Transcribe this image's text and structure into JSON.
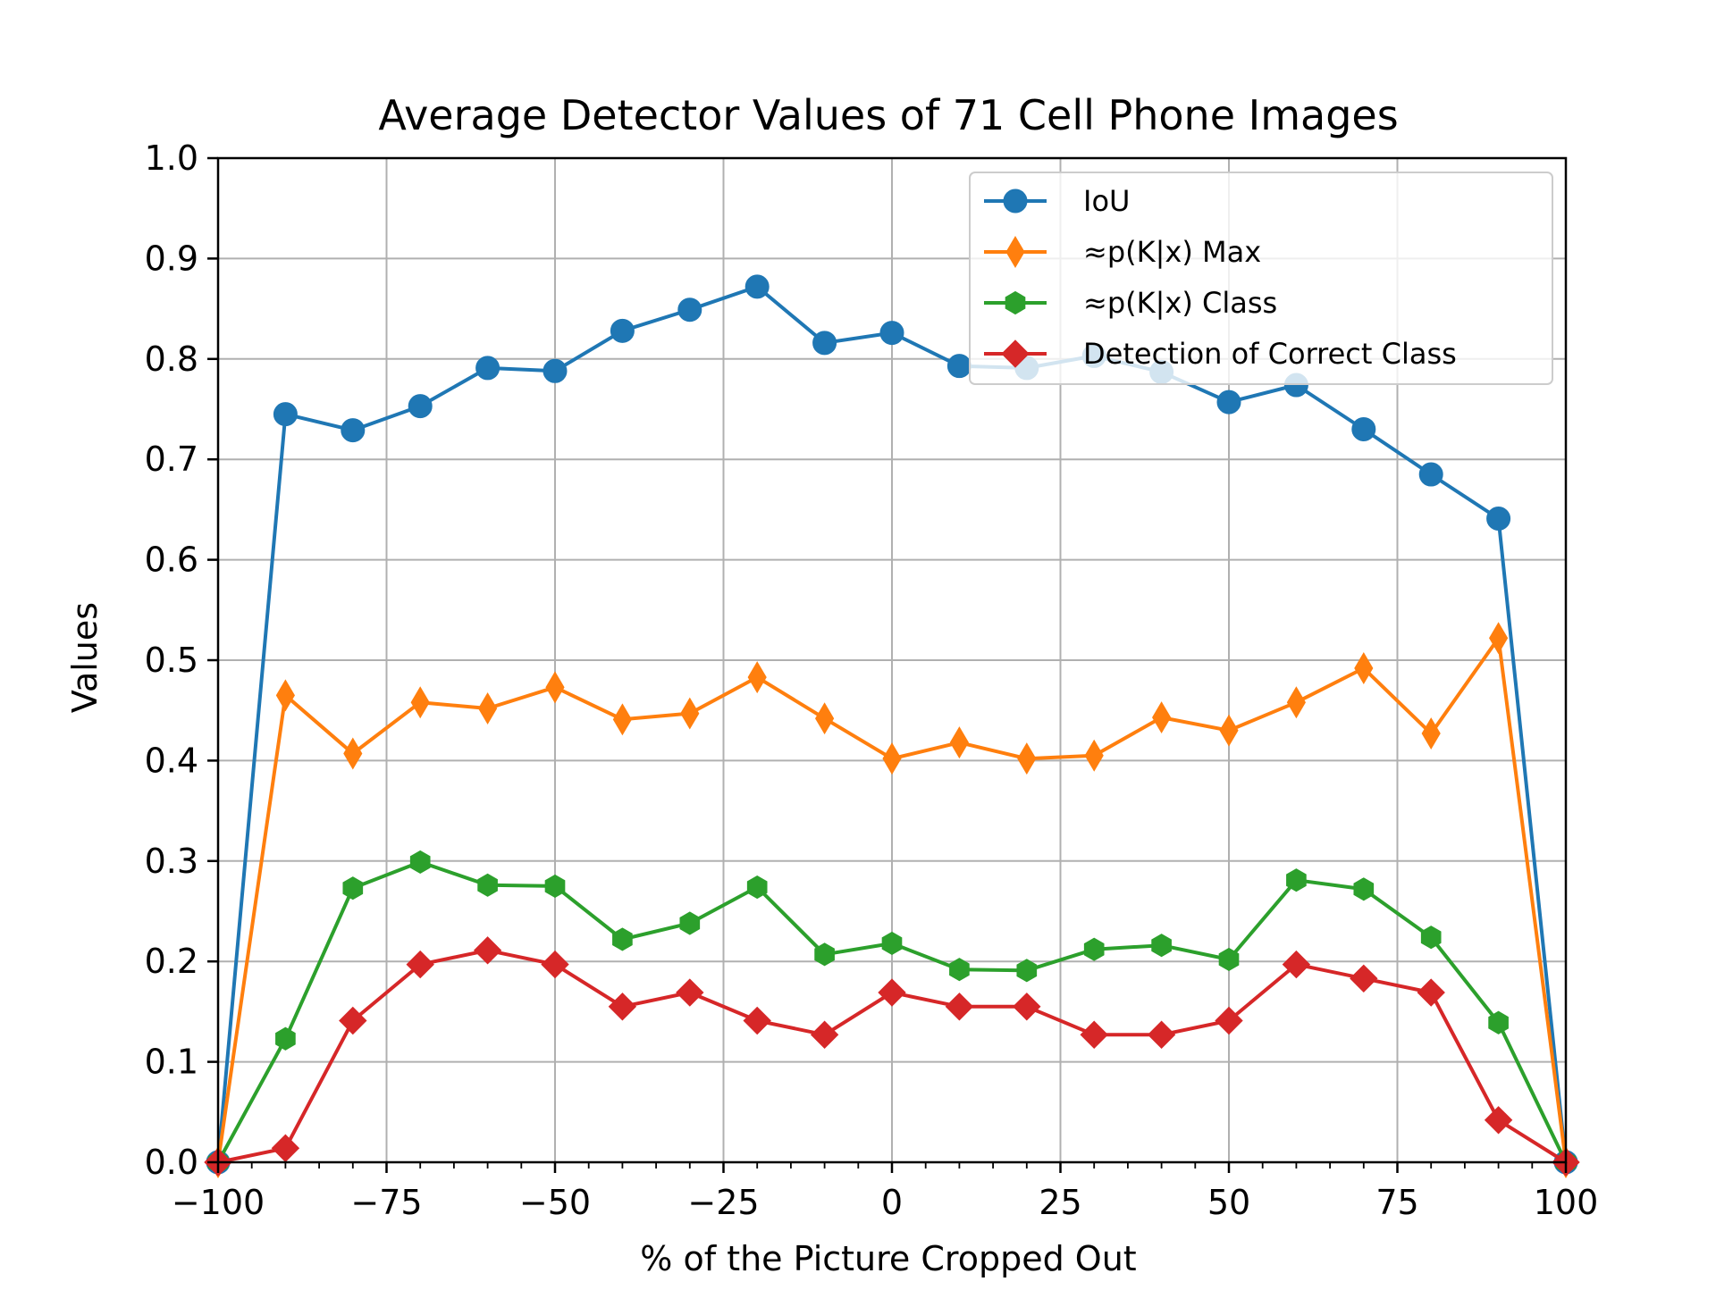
{
  "chart_data": {
    "type": "line",
    "title": "Average Detector Values of 71 Cell Phone Images",
    "xlabel": "% of the Picture Cropped Out",
    "ylabel": "Values",
    "xlim": [
      -100,
      100
    ],
    "ylim": [
      0.0,
      1.0
    ],
    "xticks": [
      -100,
      -75,
      -50,
      -25,
      0,
      25,
      50,
      75,
      100
    ],
    "xtick_labels": [
      "−100",
      "−75",
      "−50",
      "−25",
      "0",
      "25",
      "50",
      "75",
      "100"
    ],
    "yticks": [
      0.0,
      0.1,
      0.2,
      0.3,
      0.4,
      0.5,
      0.6,
      0.7,
      0.8,
      0.9,
      1.0
    ],
    "ytick_labels": [
      "0.0",
      "0.1",
      "0.2",
      "0.3",
      "0.4",
      "0.5",
      "0.6",
      "0.7",
      "0.8",
      "0.9",
      "1.0"
    ],
    "grid": true,
    "legend_position": "top-right",
    "x": [
      -100,
      -90,
      -80,
      -70,
      -60,
      -50,
      -40,
      -30,
      -20,
      -10,
      0,
      10,
      20,
      30,
      40,
      50,
      60,
      70,
      80,
      90,
      100
    ],
    "series": [
      {
        "name": "IoU",
        "color": "#1f77b4",
        "marker": "circle",
        "values": [
          0.0,
          0.745,
          0.729,
          0.753,
          0.791,
          0.788,
          0.828,
          0.849,
          0.872,
          0.816,
          0.826,
          0.793,
          0.791,
          0.803,
          0.787,
          0.757,
          0.774,
          0.73,
          0.685,
          0.641,
          0.0
        ]
      },
      {
        "name": "≈p(K|x) Max",
        "color": "#ff7f0e",
        "marker": "thin-diamond",
        "values": [
          0.0,
          0.465,
          0.407,
          0.458,
          0.452,
          0.473,
          0.441,
          0.447,
          0.483,
          0.442,
          0.402,
          0.418,
          0.402,
          0.405,
          0.443,
          0.43,
          0.458,
          0.492,
          0.427,
          0.522,
          0.0
        ]
      },
      {
        "name": "≈p(K|x) Class",
        "color": "#2ca02c",
        "marker": "hexagon",
        "values": [
          0.0,
          0.123,
          0.273,
          0.299,
          0.276,
          0.275,
          0.222,
          0.238,
          0.274,
          0.207,
          0.218,
          0.192,
          0.191,
          0.212,
          0.216,
          0.202,
          0.281,
          0.272,
          0.224,
          0.139,
          0.0
        ]
      },
      {
        "name": "Detection of Correct Class",
        "color": "#d62728",
        "marker": "diamond",
        "values": [
          0.0,
          0.014,
          0.141,
          0.197,
          0.211,
          0.197,
          0.155,
          0.169,
          0.141,
          0.127,
          0.169,
          0.155,
          0.155,
          0.127,
          0.127,
          0.141,
          0.197,
          0.183,
          0.169,
          0.042,
          0.0
        ]
      }
    ]
  }
}
